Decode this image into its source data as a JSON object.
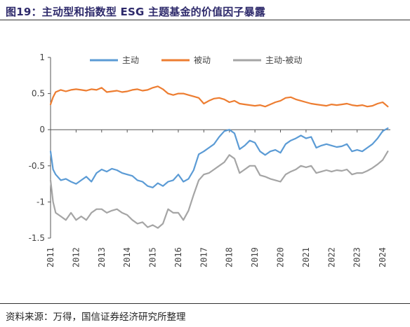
{
  "figure": {
    "title": "图19：主动型和指数型 ESG 主题基金的价值因子暴露",
    "source": "资料来源：万得，国信证券经济研究所整理"
  },
  "chart_data": {
    "type": "line",
    "title": "图19：主动型和指数型 ESG 主题基金的价值因子暴露",
    "xlabel": "",
    "ylabel": "",
    "ylim": [
      -1.5,
      1
    ],
    "yticks": [
      1,
      0.5,
      0,
      -0.5,
      -1,
      -1.5
    ],
    "ytick_labels": [
      "1",
      "0.5",
      "0",
      "-0.5",
      "-1",
      "-1.5"
    ],
    "xlim": [
      2011,
      2024.3
    ],
    "xticks": [
      2011,
      2012,
      2013,
      2014,
      2015,
      2016,
      2017,
      2018,
      2019,
      2020,
      2021,
      2022,
      2023,
      2024
    ],
    "xtick_labels": [
      "2011",
      "2012",
      "2013",
      "2014",
      "2015",
      "2016",
      "2017",
      "2018",
      "2019",
      "2020",
      "2021",
      "2022",
      "2023",
      "2024"
    ],
    "grid": false,
    "legend_position": "top",
    "series": [
      {
        "name": "主动",
        "color": "#5b9bd5",
        "x": [
          2011.0,
          2011.1,
          2011.2,
          2011.4,
          2011.6,
          2011.8,
          2012.0,
          2012.2,
          2012.4,
          2012.6,
          2012.8,
          2013.0,
          2013.2,
          2013.4,
          2013.6,
          2013.8,
          2014.0,
          2014.2,
          2014.4,
          2014.6,
          2014.8,
          2015.0,
          2015.2,
          2015.4,
          2015.6,
          2015.8,
          2016.0,
          2016.2,
          2016.4,
          2016.6,
          2016.8,
          2017.0,
          2017.2,
          2017.4,
          2017.6,
          2017.8,
          2018.0,
          2018.2,
          2018.4,
          2018.6,
          2018.8,
          2019.0,
          2019.2,
          2019.4,
          2019.6,
          2019.8,
          2020.0,
          2020.2,
          2020.4,
          2020.6,
          2020.8,
          2021.0,
          2021.2,
          2021.4,
          2021.6,
          2021.8,
          2022.0,
          2022.2,
          2022.4,
          2022.6,
          2022.8,
          2023.0,
          2023.2,
          2023.4,
          2023.6,
          2023.8,
          2024.0,
          2024.2
        ],
        "y": [
          -0.3,
          -0.55,
          -0.62,
          -0.7,
          -0.68,
          -0.72,
          -0.75,
          -0.7,
          -0.65,
          -0.72,
          -0.6,
          -0.55,
          -0.58,
          -0.54,
          -0.56,
          -0.6,
          -0.62,
          -0.64,
          -0.7,
          -0.72,
          -0.78,
          -0.8,
          -0.74,
          -0.78,
          -0.72,
          -0.7,
          -0.62,
          -0.72,
          -0.68,
          -0.56,
          -0.34,
          -0.3,
          -0.25,
          -0.2,
          -0.1,
          -0.02,
          0.0,
          -0.05,
          -0.27,
          -0.22,
          -0.15,
          -0.18,
          -0.3,
          -0.35,
          -0.3,
          -0.28,
          -0.32,
          -0.2,
          -0.15,
          -0.12,
          -0.08,
          -0.12,
          -0.1,
          -0.25,
          -0.22,
          -0.2,
          -0.22,
          -0.24,
          -0.23,
          -0.2,
          -0.3,
          -0.28,
          -0.3,
          -0.25,
          -0.2,
          -0.12,
          -0.02,
          0.02
        ]
      },
      {
        "name": "被动",
        "color": "#ed7d31",
        "x": [
          2011.0,
          2011.1,
          2011.2,
          2011.4,
          2011.6,
          2011.8,
          2012.0,
          2012.2,
          2012.4,
          2012.6,
          2012.8,
          2013.0,
          2013.2,
          2013.4,
          2013.6,
          2013.8,
          2014.0,
          2014.2,
          2014.4,
          2014.6,
          2014.8,
          2015.0,
          2015.2,
          2015.4,
          2015.6,
          2015.8,
          2016.0,
          2016.2,
          2016.4,
          2016.6,
          2016.8,
          2017.0,
          2017.2,
          2017.4,
          2017.6,
          2017.8,
          2018.0,
          2018.2,
          2018.4,
          2018.6,
          2018.8,
          2019.0,
          2019.2,
          2019.4,
          2019.6,
          2019.8,
          2020.0,
          2020.2,
          2020.4,
          2020.6,
          2020.8,
          2021.0,
          2021.2,
          2021.4,
          2021.6,
          2021.8,
          2022.0,
          2022.2,
          2022.4,
          2022.6,
          2022.8,
          2023.0,
          2023.2,
          2023.4,
          2023.6,
          2023.8,
          2024.0,
          2024.2
        ],
        "y": [
          0.35,
          0.45,
          0.52,
          0.55,
          0.53,
          0.55,
          0.56,
          0.55,
          0.54,
          0.56,
          0.55,
          0.58,
          0.52,
          0.53,
          0.54,
          0.52,
          0.53,
          0.55,
          0.56,
          0.54,
          0.55,
          0.58,
          0.6,
          0.56,
          0.5,
          0.48,
          0.5,
          0.5,
          0.48,
          0.46,
          0.44,
          0.36,
          0.4,
          0.43,
          0.44,
          0.42,
          0.38,
          0.4,
          0.36,
          0.35,
          0.34,
          0.33,
          0.34,
          0.32,
          0.35,
          0.38,
          0.4,
          0.44,
          0.45,
          0.42,
          0.4,
          0.38,
          0.36,
          0.35,
          0.34,
          0.33,
          0.35,
          0.34,
          0.35,
          0.36,
          0.34,
          0.33,
          0.34,
          0.32,
          0.33,
          0.36,
          0.38,
          0.32
        ]
      },
      {
        "name": "主动-被动",
        "color": "#a5a5a5",
        "x": [
          2011.0,
          2011.1,
          2011.2,
          2011.4,
          2011.6,
          2011.8,
          2012.0,
          2012.2,
          2012.4,
          2012.6,
          2012.8,
          2013.0,
          2013.2,
          2013.4,
          2013.6,
          2013.8,
          2014.0,
          2014.2,
          2014.4,
          2014.6,
          2014.8,
          2015.0,
          2015.2,
          2015.4,
          2015.6,
          2015.8,
          2016.0,
          2016.2,
          2016.4,
          2016.6,
          2016.8,
          2017.0,
          2017.2,
          2017.4,
          2017.6,
          2017.8,
          2018.0,
          2018.2,
          2018.4,
          2018.6,
          2018.8,
          2019.0,
          2019.2,
          2019.4,
          2019.6,
          2019.8,
          2020.0,
          2020.2,
          2020.4,
          2020.6,
          2020.8,
          2021.0,
          2021.2,
          2021.4,
          2021.6,
          2021.8,
          2022.0,
          2022.2,
          2022.4,
          2022.6,
          2022.8,
          2023.0,
          2023.2,
          2023.4,
          2023.6,
          2023.8,
          2024.0,
          2024.2
        ],
        "y": [
          -0.7,
          -1.0,
          -1.15,
          -1.2,
          -1.25,
          -1.15,
          -1.25,
          -1.2,
          -1.25,
          -1.15,
          -1.1,
          -1.1,
          -1.15,
          -1.12,
          -1.1,
          -1.15,
          -1.18,
          -1.25,
          -1.3,
          -1.28,
          -1.35,
          -1.32,
          -1.36,
          -1.3,
          -1.1,
          -1.15,
          -1.15,
          -1.25,
          -1.12,
          -0.9,
          -0.7,
          -0.62,
          -0.6,
          -0.55,
          -0.5,
          -0.45,
          -0.35,
          -0.4,
          -0.6,
          -0.55,
          -0.5,
          -0.5,
          -0.63,
          -0.65,
          -0.68,
          -0.7,
          -0.72,
          -0.62,
          -0.58,
          -0.55,
          -0.5,
          -0.52,
          -0.5,
          -0.6,
          -0.58,
          -0.56,
          -0.58,
          -0.56,
          -0.57,
          -0.55,
          -0.62,
          -0.6,
          -0.6,
          -0.57,
          -0.53,
          -0.48,
          -0.42,
          -0.3
        ]
      }
    ]
  }
}
